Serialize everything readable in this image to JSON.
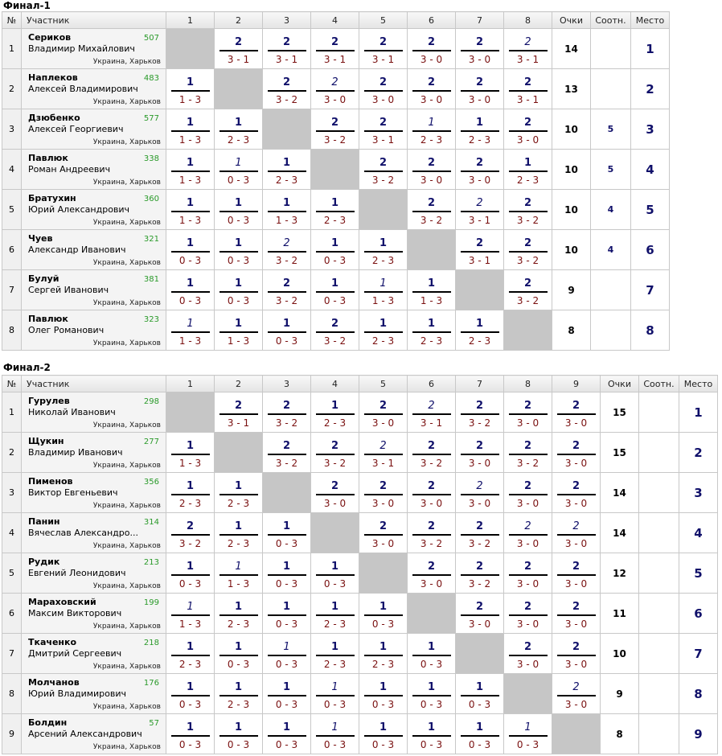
{
  "final1": {
    "title": "Финал-1",
    "headers": {
      "num": "№",
      "player": "Участник",
      "cols": [
        "1",
        "2",
        "3",
        "4",
        "5",
        "6",
        "7",
        "8"
      ],
      "points": "Очки",
      "coeff": "Соотн.",
      "place": "Место"
    },
    "rows": [
      {
        "num": "1",
        "surname": "Сериков",
        "first": "Владимир Михайлович",
        "rating": "507",
        "city": "Украина, Харьков",
        "points": "14",
        "coeff": "",
        "place": "1",
        "results": [
          null,
          {
            "s": "2",
            "it": false,
            "sc": "3 - 1"
          },
          {
            "s": "2",
            "it": false,
            "sc": "3 - 1"
          },
          {
            "s": "2",
            "it": false,
            "sc": "3 - 1"
          },
          {
            "s": "2",
            "it": false,
            "sc": "3 - 1"
          },
          {
            "s": "2",
            "it": false,
            "sc": "3 - 0"
          },
          {
            "s": "2",
            "it": false,
            "sc": "3 - 0"
          },
          {
            "s": "2",
            "it": true,
            "sc": "3 - 1"
          }
        ]
      },
      {
        "num": "2",
        "surname": "Наплеков",
        "first": "Алексей Владимирович",
        "rating": "483",
        "city": "Украина, Харьков",
        "points": "13",
        "coeff": "",
        "place": "2",
        "results": [
          {
            "s": "1",
            "it": false,
            "sc": "1 - 3"
          },
          null,
          {
            "s": "2",
            "it": false,
            "sc": "3 - 2"
          },
          {
            "s": "2",
            "it": true,
            "sc": "3 - 0"
          },
          {
            "s": "2",
            "it": false,
            "sc": "3 - 0"
          },
          {
            "s": "2",
            "it": false,
            "sc": "3 - 0"
          },
          {
            "s": "2",
            "it": false,
            "sc": "3 - 0"
          },
          {
            "s": "2",
            "it": false,
            "sc": "3 - 1"
          }
        ]
      },
      {
        "num": "3",
        "surname": "Дзюбенко",
        "first": "Алексей Георгиевич",
        "rating": "577",
        "city": "Украина, Харьков",
        "points": "10",
        "coeff": "5",
        "place": "3",
        "results": [
          {
            "s": "1",
            "it": false,
            "sc": "1 - 3"
          },
          {
            "s": "1",
            "it": false,
            "sc": "2 - 3"
          },
          null,
          {
            "s": "2",
            "it": false,
            "sc": "3 - 2"
          },
          {
            "s": "2",
            "it": false,
            "sc": "3 - 1"
          },
          {
            "s": "1",
            "it": true,
            "sc": "2 - 3"
          },
          {
            "s": "1",
            "it": false,
            "sc": "2 - 3"
          },
          {
            "s": "2",
            "it": false,
            "sc": "3 - 0"
          }
        ]
      },
      {
        "num": "4",
        "surname": "Павлюк",
        "first": "Роман Андреевич",
        "rating": "338",
        "city": "Украина, Харьков",
        "points": "10",
        "coeff": "5",
        "place": "4",
        "results": [
          {
            "s": "1",
            "it": false,
            "sc": "1 - 3"
          },
          {
            "s": "1",
            "it": true,
            "sc": "0 - 3"
          },
          {
            "s": "1",
            "it": false,
            "sc": "2 - 3"
          },
          null,
          {
            "s": "2",
            "it": false,
            "sc": "3 - 2"
          },
          {
            "s": "2",
            "it": false,
            "sc": "3 - 0"
          },
          {
            "s": "2",
            "it": false,
            "sc": "3 - 0"
          },
          {
            "s": "1",
            "it": false,
            "sc": "2 - 3"
          }
        ]
      },
      {
        "num": "5",
        "surname": "Братухин",
        "first": "Юрий Александрович",
        "rating": "360",
        "city": "Украина, Харьков",
        "points": "10",
        "coeff": "4",
        "place": "5",
        "results": [
          {
            "s": "1",
            "it": false,
            "sc": "1 - 3"
          },
          {
            "s": "1",
            "it": false,
            "sc": "0 - 3"
          },
          {
            "s": "1",
            "it": false,
            "sc": "1 - 3"
          },
          {
            "s": "1",
            "it": false,
            "sc": "2 - 3"
          },
          null,
          {
            "s": "2",
            "it": false,
            "sc": "3 - 2"
          },
          {
            "s": "2",
            "it": true,
            "sc": "3 - 1"
          },
          {
            "s": "2",
            "it": false,
            "sc": "3 - 2"
          }
        ]
      },
      {
        "num": "6",
        "surname": "Чуев",
        "first": "Александр Иванович",
        "rating": "321",
        "city": "Украина, Харьков",
        "points": "10",
        "coeff": "4",
        "place": "6",
        "results": [
          {
            "s": "1",
            "it": false,
            "sc": "0 - 3"
          },
          {
            "s": "1",
            "it": false,
            "sc": "0 - 3"
          },
          {
            "s": "2",
            "it": true,
            "sc": "3 - 2"
          },
          {
            "s": "1",
            "it": false,
            "sc": "0 - 3"
          },
          {
            "s": "1",
            "it": false,
            "sc": "2 - 3"
          },
          null,
          {
            "s": "2",
            "it": false,
            "sc": "3 - 1"
          },
          {
            "s": "2",
            "it": false,
            "sc": "3 - 2"
          }
        ]
      },
      {
        "num": "7",
        "surname": "Булуй",
        "first": "Сергей Иванович",
        "rating": "381",
        "city": "Украина, Харьков",
        "points": "9",
        "coeff": "",
        "place": "7",
        "results": [
          {
            "s": "1",
            "it": false,
            "sc": "0 - 3"
          },
          {
            "s": "1",
            "it": false,
            "sc": "0 - 3"
          },
          {
            "s": "2",
            "it": false,
            "sc": "3 - 2"
          },
          {
            "s": "1",
            "it": false,
            "sc": "0 - 3"
          },
          {
            "s": "1",
            "it": true,
            "sc": "1 - 3"
          },
          {
            "s": "1",
            "it": false,
            "sc": "1 - 3"
          },
          null,
          {
            "s": "2",
            "it": false,
            "sc": "3 - 2"
          }
        ]
      },
      {
        "num": "8",
        "surname": "Павлюк",
        "first": "Олег Романович",
        "rating": "323",
        "city": "Украина, Харьков",
        "points": "8",
        "coeff": "",
        "place": "8",
        "results": [
          {
            "s": "1",
            "it": true,
            "sc": "1 - 3"
          },
          {
            "s": "1",
            "it": false,
            "sc": "1 - 3"
          },
          {
            "s": "1",
            "it": false,
            "sc": "0 - 3"
          },
          {
            "s": "2",
            "it": false,
            "sc": "3 - 2"
          },
          {
            "s": "1",
            "it": false,
            "sc": "2 - 3"
          },
          {
            "s": "1",
            "it": false,
            "sc": "2 - 3"
          },
          {
            "s": "1",
            "it": false,
            "sc": "2 - 3"
          },
          null
        ]
      }
    ]
  },
  "final2": {
    "title": "Финал-2",
    "headers": {
      "num": "№",
      "player": "Участник",
      "cols": [
        "1",
        "2",
        "3",
        "4",
        "5",
        "6",
        "7",
        "8",
        "9"
      ],
      "points": "Очки",
      "coeff": "Соотн.",
      "place": "Место"
    },
    "rows": [
      {
        "num": "1",
        "surname": "Гурулев",
        "first": "Николай Иванович",
        "rating": "298",
        "city": "Украина, Харьков",
        "points": "15",
        "coeff": "",
        "place": "1",
        "results": [
          null,
          {
            "s": "2",
            "it": false,
            "sc": "3 - 1"
          },
          {
            "s": "2",
            "it": false,
            "sc": "3 - 2"
          },
          {
            "s": "1",
            "it": false,
            "sc": "2 - 3"
          },
          {
            "s": "2",
            "it": false,
            "sc": "3 - 0"
          },
          {
            "s": "2",
            "it": true,
            "sc": "3 - 1"
          },
          {
            "s": "2",
            "it": false,
            "sc": "3 - 2"
          },
          {
            "s": "2",
            "it": false,
            "sc": "3 - 0"
          },
          {
            "s": "2",
            "it": false,
            "sc": "3 - 0"
          }
        ]
      },
      {
        "num": "2",
        "surname": "Щукин",
        "first": "Владимир Иванович",
        "rating": "277",
        "city": "Украина, Харьков",
        "points": "15",
        "coeff": "",
        "place": "2",
        "results": [
          {
            "s": "1",
            "it": false,
            "sc": "1 - 3"
          },
          null,
          {
            "s": "2",
            "it": false,
            "sc": "3 - 2"
          },
          {
            "s": "2",
            "it": false,
            "sc": "3 - 2"
          },
          {
            "s": "2",
            "it": true,
            "sc": "3 - 1"
          },
          {
            "s": "2",
            "it": false,
            "sc": "3 - 2"
          },
          {
            "s": "2",
            "it": false,
            "sc": "3 - 0"
          },
          {
            "s": "2",
            "it": false,
            "sc": "3 - 2"
          },
          {
            "s": "2",
            "it": false,
            "sc": "3 - 0"
          }
        ]
      },
      {
        "num": "3",
        "surname": "Пименов",
        "first": "Виктор Евгеньевич",
        "rating": "356",
        "city": "Украина, Харьков",
        "points": "14",
        "coeff": "",
        "place": "3",
        "results": [
          {
            "s": "1",
            "it": false,
            "sc": "2 - 3"
          },
          {
            "s": "1",
            "it": false,
            "sc": "2 - 3"
          },
          null,
          {
            "s": "2",
            "it": false,
            "sc": "3 - 0"
          },
          {
            "s": "2",
            "it": false,
            "sc": "3 - 0"
          },
          {
            "s": "2",
            "it": false,
            "sc": "3 - 0"
          },
          {
            "s": "2",
            "it": true,
            "sc": "3 - 0"
          },
          {
            "s": "2",
            "it": false,
            "sc": "3 - 0"
          },
          {
            "s": "2",
            "it": false,
            "sc": "3 - 0"
          }
        ]
      },
      {
        "num": "4",
        "surname": "Панин",
        "first": "Вячеслав Александро...",
        "rating": "314",
        "city": "Украина, Харьков",
        "points": "14",
        "coeff": "",
        "place": "4",
        "results": [
          {
            "s": "2",
            "it": false,
            "sc": "3 - 2"
          },
          {
            "s": "1",
            "it": false,
            "sc": "2 - 3"
          },
          {
            "s": "1",
            "it": false,
            "sc": "0 - 3"
          },
          null,
          {
            "s": "2",
            "it": false,
            "sc": "3 - 0"
          },
          {
            "s": "2",
            "it": false,
            "sc": "3 - 2"
          },
          {
            "s": "2",
            "it": false,
            "sc": "3 - 2"
          },
          {
            "s": "2",
            "it": true,
            "sc": "3 - 0"
          },
          {
            "s": "2",
            "it": true,
            "sc": "3 - 0"
          }
        ]
      },
      {
        "num": "5",
        "surname": "Рудик",
        "first": "Евгений Леонидович",
        "rating": "213",
        "city": "Украина, Харьков",
        "points": "12",
        "coeff": "",
        "place": "5",
        "results": [
          {
            "s": "1",
            "it": false,
            "sc": "0 - 3"
          },
          {
            "s": "1",
            "it": true,
            "sc": "1 - 3"
          },
          {
            "s": "1",
            "it": false,
            "sc": "0 - 3"
          },
          {
            "s": "1",
            "it": false,
            "sc": "0 - 3"
          },
          null,
          {
            "s": "2",
            "it": false,
            "sc": "3 - 0"
          },
          {
            "s": "2",
            "it": false,
            "sc": "3 - 2"
          },
          {
            "s": "2",
            "it": false,
            "sc": "3 - 0"
          },
          {
            "s": "2",
            "it": false,
            "sc": "3 - 0"
          }
        ]
      },
      {
        "num": "6",
        "surname": "Мараховский",
        "first": "Максим Викторович",
        "rating": "199",
        "city": "Украина, Харьков",
        "points": "11",
        "coeff": "",
        "place": "6",
        "results": [
          {
            "s": "1",
            "it": true,
            "sc": "1 - 3"
          },
          {
            "s": "1",
            "it": false,
            "sc": "2 - 3"
          },
          {
            "s": "1",
            "it": false,
            "sc": "0 - 3"
          },
          {
            "s": "1",
            "it": false,
            "sc": "2 - 3"
          },
          {
            "s": "1",
            "it": false,
            "sc": "0 - 3"
          },
          null,
          {
            "s": "2",
            "it": false,
            "sc": "3 - 0"
          },
          {
            "s": "2",
            "it": false,
            "sc": "3 - 0"
          },
          {
            "s": "2",
            "it": false,
            "sc": "3 - 0"
          }
        ]
      },
      {
        "num": "7",
        "surname": "Ткаченко",
        "first": "Дмитрий Сергеевич",
        "rating": "218",
        "city": "Украина, Харьков",
        "points": "10",
        "coeff": "",
        "place": "7",
        "results": [
          {
            "s": "1",
            "it": false,
            "sc": "2 - 3"
          },
          {
            "s": "1",
            "it": false,
            "sc": "0 - 3"
          },
          {
            "s": "1",
            "it": true,
            "sc": "0 - 3"
          },
          {
            "s": "1",
            "it": false,
            "sc": "2 - 3"
          },
          {
            "s": "1",
            "it": false,
            "sc": "2 - 3"
          },
          {
            "s": "1",
            "it": false,
            "sc": "0 - 3"
          },
          null,
          {
            "s": "2",
            "it": false,
            "sc": "3 - 0"
          },
          {
            "s": "2",
            "it": false,
            "sc": "3 - 0"
          }
        ]
      },
      {
        "num": "8",
        "surname": "Молчанов",
        "first": "Юрий Владимирович",
        "rating": "176",
        "city": "Украина, Харьков",
        "points": "9",
        "coeff": "",
        "place": "8",
        "results": [
          {
            "s": "1",
            "it": false,
            "sc": "0 - 3"
          },
          {
            "s": "1",
            "it": false,
            "sc": "2 - 3"
          },
          {
            "s": "1",
            "it": false,
            "sc": "0 - 3"
          },
          {
            "s": "1",
            "it": true,
            "sc": "0 - 3"
          },
          {
            "s": "1",
            "it": false,
            "sc": "0 - 3"
          },
          {
            "s": "1",
            "it": false,
            "sc": "0 - 3"
          },
          {
            "s": "1",
            "it": false,
            "sc": "0 - 3"
          },
          null,
          {
            "s": "2",
            "it": true,
            "sc": "3 - 0"
          }
        ]
      },
      {
        "num": "9",
        "surname": "Болдин",
        "first": "Арсений Александрович",
        "rating": "57",
        "city": "Украина, Харьков",
        "points": "8",
        "coeff": "",
        "place": "9",
        "results": [
          {
            "s": "1",
            "it": false,
            "sc": "0 - 3"
          },
          {
            "s": "1",
            "it": false,
            "sc": "0 - 3"
          },
          {
            "s": "1",
            "it": false,
            "sc": "0 - 3"
          },
          {
            "s": "1",
            "it": true,
            "sc": "0 - 3"
          },
          {
            "s": "1",
            "it": false,
            "sc": "0 - 3"
          },
          {
            "s": "1",
            "it": false,
            "sc": "0 - 3"
          },
          {
            "s": "1",
            "it": false,
            "sc": "0 - 3"
          },
          {
            "s": "1",
            "it": true,
            "sc": "0 - 3"
          },
          null
        ]
      }
    ]
  }
}
